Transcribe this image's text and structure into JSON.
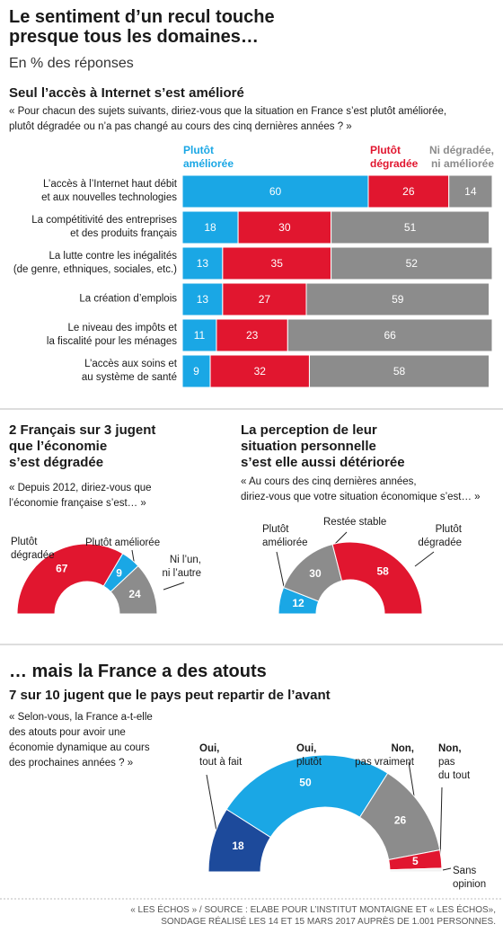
{
  "header": {
    "title": "Le sentiment d’un recul touche\npresque tous les domaines…",
    "subtitle": "En % des réponses"
  },
  "chart_data": [
    {
      "type": "bar",
      "orientation": "horizontal",
      "stacked": true,
      "title": "Seul l’accès à Internet s’est amélioré",
      "subtitle": "« Pour chacun des sujets suivants, diriez-vous que la situation en France s’est plutôt améliorée,\nplutôt dégradée ou n’a pas changé au cours des cinq dernières années ? »",
      "categories": [
        "L’accès à l’Internet haut débit\net aux nouvelles technologies",
        "La compétitivité des entreprises\net des produits français",
        "La lutte contre les inégalités\n(de genre, ethniques, sociales, etc.)",
        "La création d’emplois",
        "Le niveau des impôts et\nla fiscalité pour les ménages",
        "L’accès aux soins et\nau système de santé"
      ],
      "series": [
        {
          "name": "Plutôt\naméliorée",
          "color": "#1aa7e5",
          "values": [
            60,
            18,
            13,
            13,
            11,
            9
          ]
        },
        {
          "name": "Plutôt\ndégradée",
          "color": "#e1162f",
          "values": [
            26,
            30,
            35,
            27,
            23,
            32
          ]
        },
        {
          "name": "Ni dégradée,\nni améliorée",
          "color": "#8c8c8c",
          "values": [
            14,
            51,
            52,
            59,
            66,
            58
          ]
        }
      ],
      "xlim": [
        0,
        100
      ]
    },
    {
      "type": "half-donut",
      "title": "2 Français sur 3 jugent\nque l’économie\ns’est dégradée",
      "subtitle": "« Depuis 2012, diriez-vous que\nl’économie française s’est… »",
      "categories": [
        "Plutôt\ndégradée",
        "Plutôt améliorée",
        "Ni l’un,\nni l’autre"
      ],
      "values": [
        67,
        9,
        24
      ],
      "colors": [
        "#e1162f",
        "#1aa7e5",
        "#8c8c8c"
      ]
    },
    {
      "type": "half-donut",
      "title": "La perception de leur\nsituation personnelle\ns’est elle aussi détériorée",
      "subtitle": "« Au cours des cinq dernières années,\ndiriez-vous que votre situation économique s’est… »",
      "categories": [
        "Plutôt\naméliorée",
        "Restée stable",
        "Plutôt\ndégradée"
      ],
      "values": [
        12,
        30,
        58
      ],
      "colors": [
        "#1aa7e5",
        "#8c8c8c",
        "#e1162f"
      ]
    },
    {
      "type": "half-donut",
      "title": "7 sur 10 jugent que le pays peut repartir de l’avant",
      "subtitle": "« Selon-vous, la France a-t-elle\ndes atouts pour avoir une\néconomie dynamique au cours\ndes prochaines années ? »",
      "categories": [
        {
          "lead": "Oui,",
          "text": "tout à fait"
        },
        {
          "lead": "Oui,",
          "text": "plutôt"
        },
        {
          "lead": "Non,",
          "text": "pas vraiment"
        },
        {
          "lead": "Non,",
          "text": "pas\ndu tout"
        },
        {
          "text": "Sans\nopinion"
        }
      ],
      "values": [
        18,
        50,
        26,
        5,
        1
      ],
      "colors": [
        "#1d4a9b",
        "#1aa7e5",
        "#8c8c8c",
        "#e1162f",
        "#f2f2f2"
      ]
    }
  ],
  "section_title": "… mais la France a des atouts",
  "footer": "« LES ÉCHOS » / SOURCE : ELABE POUR L’INSTITUT MONTAIGNE ET « LES ÉCHOS»,\nSONDAGE RÉALISÉ LES 14 ET 15 MARS 2017 AUPRÈS DE 1.001 PERSONNES."
}
